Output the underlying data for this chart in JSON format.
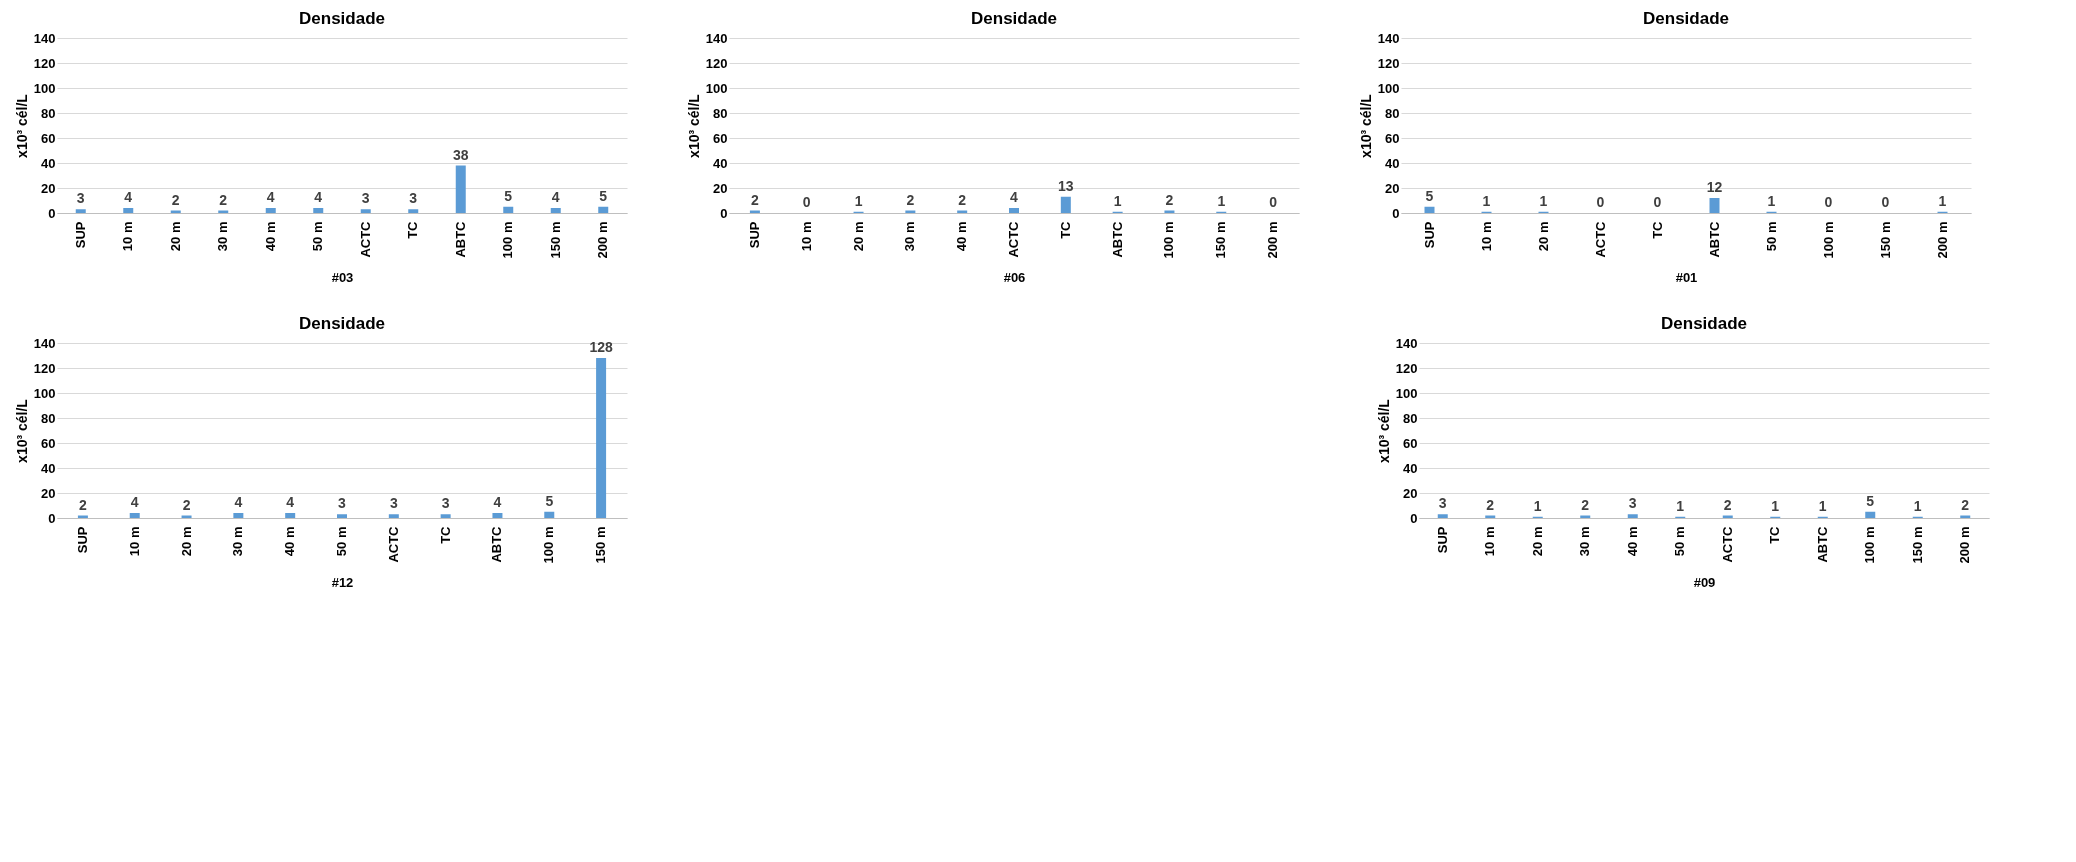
{
  "chart_data": [
    {
      "type": "bar",
      "title": "Densidade",
      "xlabel": "#03",
      "ylabel": "x10³ cél/L",
      "categories": [
        "SUP",
        "10 m",
        "20 m",
        "30 m",
        "40 m",
        "50 m",
        "ACTC",
        "TC",
        "ABTC",
        "100 m",
        "150 m",
        "200 m"
      ],
      "values": [
        3,
        4,
        2,
        2,
        4,
        4,
        3,
        3,
        38,
        5,
        4,
        5
      ],
      "color": "#5b9bd5",
      "ylim": [
        0,
        140
      ],
      "yticks": [
        0,
        20,
        40,
        60,
        80,
        100,
        120,
        140
      ],
      "grid": "y",
      "data_labels": true
    },
    {
      "type": "bar",
      "title": "Densidade",
      "xlabel": "#06",
      "ylabel": "x10³ cél/L",
      "categories": [
        "SUP",
        "10 m",
        "20 m",
        "30 m",
        "40 m",
        "ACTC",
        "TC",
        "ABTC",
        "100 m",
        "150 m",
        "200 m"
      ],
      "values": [
        2,
        0,
        1,
        2,
        2,
        4,
        13,
        1,
        2,
        1,
        0
      ],
      "color": "#5b9bd5",
      "ylim": [
        0,
        140
      ],
      "yticks": [
        0,
        20,
        40,
        60,
        80,
        100,
        120,
        140
      ],
      "grid": "y",
      "data_labels": true
    },
    {
      "type": "bar",
      "title": "Densidade",
      "xlabel": "#01",
      "ylabel": "x10³ cél/L",
      "categories": [
        "SUP",
        "10 m",
        "20 m",
        "ACTC",
        "TC",
        "ABTC",
        "50 m",
        "100 m",
        "150 m",
        "200 m"
      ],
      "values": [
        5,
        1,
        1,
        0,
        0,
        12,
        1,
        0,
        0,
        1
      ],
      "color": "#5b9bd5",
      "ylim": [
        0,
        140
      ],
      "yticks": [
        0,
        20,
        40,
        60,
        80,
        100,
        120,
        140
      ],
      "grid": "y",
      "data_labels": true
    },
    {
      "type": "bar",
      "title": "Densidade",
      "xlabel": "#12",
      "ylabel": "x10³ cél/L",
      "categories": [
        "SUP",
        "10 m",
        "20 m",
        "30 m",
        "40 m",
        "50 m",
        "ACTC",
        "TC",
        "ABTC",
        "100 m",
        "150 m"
      ],
      "values": [
        2,
        4,
        2,
        4,
        4,
        3,
        3,
        3,
        4,
        5,
        128
      ],
      "color": "#5b9bd5",
      "ylim": [
        0,
        140
      ],
      "yticks": [
        0,
        20,
        40,
        60,
        80,
        100,
        120,
        140
      ],
      "grid": "y",
      "data_labels": true
    },
    {
      "type": "bar",
      "title": "Densidade",
      "xlabel": "#09",
      "ylabel": "x10³ cél/L",
      "categories": [
        "SUP",
        "10 m",
        "20 m",
        "30 m",
        "40 m",
        "50 m",
        "ACTC",
        "TC",
        "ABTC",
        "100 m",
        "150 m",
        "200 m"
      ],
      "values": [
        3,
        2,
        1,
        2,
        3,
        1,
        2,
        1,
        1,
        5,
        1,
        2
      ],
      "color": "#5b9bd5",
      "ylim": [
        0,
        140
      ],
      "yticks": [
        0,
        20,
        40,
        60,
        80,
        100,
        120,
        140
      ],
      "grid": "y",
      "data_labels": true
    }
  ]
}
